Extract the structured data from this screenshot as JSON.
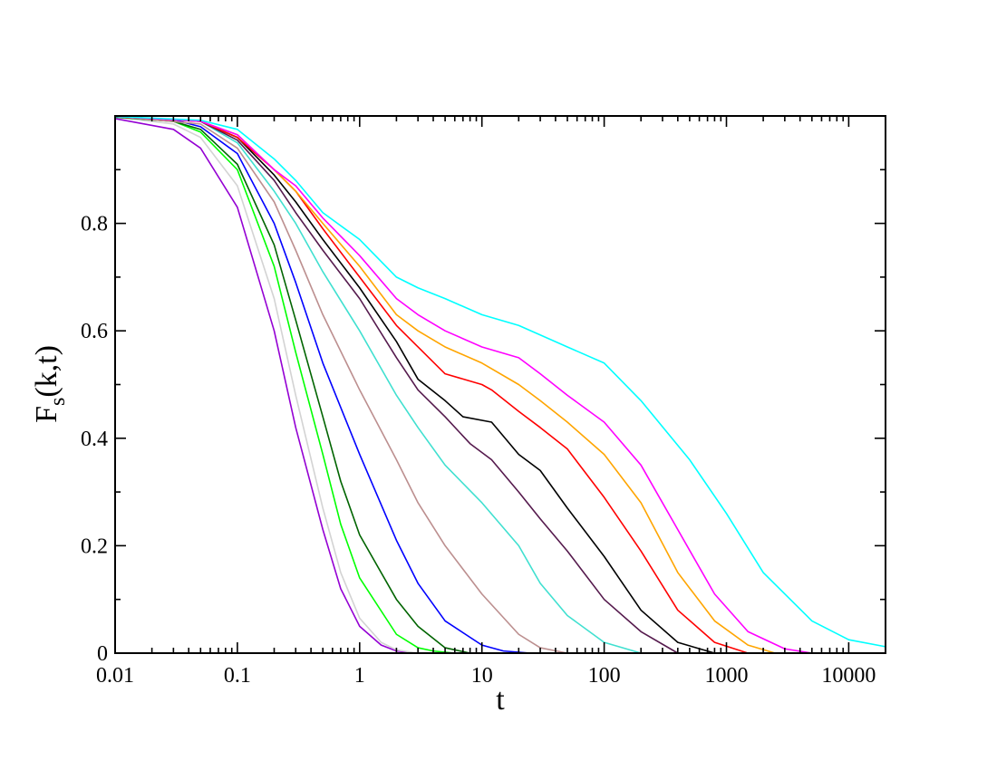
{
  "chart_data": {
    "type": "line",
    "xlabel": "t",
    "ylabel": "F",
    "ylabel_sub": "s",
    "ylabel_args": "(k,t)",
    "x_scale": "log",
    "xlim": [
      0.01,
      20000
    ],
    "ylim": [
      0,
      1
    ],
    "grid": false,
    "x_ticks": [
      {
        "value": 0.01,
        "label": "0.01"
      },
      {
        "value": 0.1,
        "label": "0.1"
      },
      {
        "value": 1,
        "label": "1"
      },
      {
        "value": 10,
        "label": "10"
      },
      {
        "value": 100,
        "label": "100"
      },
      {
        "value": 1000,
        "label": "1000"
      },
      {
        "value": 10000,
        "label": "10000"
      }
    ],
    "y_ticks": [
      {
        "value": 0,
        "label": "0"
      },
      {
        "value": 0.2,
        "label": "0.2"
      },
      {
        "value": 0.4,
        "label": "0.4"
      },
      {
        "value": 0.6,
        "label": "0.6"
      },
      {
        "value": 0.8,
        "label": "0.8"
      }
    ],
    "y_minor_ticks": [
      0.1,
      0.3,
      0.5,
      0.7,
      0.9
    ],
    "series": [
      {
        "color": "#9400d3",
        "x": [
          0.01,
          0.03,
          0.05,
          0.1,
          0.2,
          0.3,
          0.5,
          0.7,
          1.0,
          1.5,
          2.0,
          3.0
        ],
        "y": [
          0.995,
          0.975,
          0.94,
          0.83,
          0.6,
          0.42,
          0.23,
          0.12,
          0.05,
          0.015,
          0.004,
          0.0
        ]
      },
      {
        "color": "#d3d3d3",
        "x": [
          0.01,
          0.03,
          0.05,
          0.1,
          0.2,
          0.3,
          0.5,
          0.7,
          1.0,
          1.5,
          2.0,
          3.0
        ],
        "y": [
          0.998,
          0.985,
          0.96,
          0.87,
          0.66,
          0.48,
          0.27,
          0.15,
          0.065,
          0.02,
          0.006,
          0.0
        ]
      },
      {
        "color": "#00ff00",
        "x": [
          0.01,
          0.03,
          0.05,
          0.1,
          0.2,
          0.3,
          0.5,
          0.7,
          1.0,
          2.0,
          3.0,
          4.0,
          6.0
        ],
        "y": [
          0.998,
          0.99,
          0.97,
          0.9,
          0.72,
          0.56,
          0.37,
          0.24,
          0.14,
          0.035,
          0.01,
          0.004,
          0.0
        ]
      },
      {
        "color": "#006400",
        "x": [
          0.01,
          0.03,
          0.05,
          0.1,
          0.2,
          0.3,
          0.5,
          0.7,
          1.0,
          2.0,
          3.0,
          5.0,
          8.0
        ],
        "y": [
          0.998,
          0.99,
          0.975,
          0.91,
          0.76,
          0.62,
          0.44,
          0.32,
          0.22,
          0.1,
          0.05,
          0.01,
          0.0
        ]
      },
      {
        "color": "#0000ff",
        "x": [
          0.01,
          0.03,
          0.05,
          0.1,
          0.2,
          0.3,
          0.5,
          1.0,
          2.0,
          3.0,
          5.0,
          10.0,
          15.0,
          25.0
        ],
        "y": [
          0.999,
          0.993,
          0.98,
          0.93,
          0.8,
          0.69,
          0.54,
          0.37,
          0.21,
          0.13,
          0.06,
          0.015,
          0.004,
          0.0
        ]
      },
      {
        "color": "#bc8f8f",
        "x": [
          0.01,
          0.05,
          0.1,
          0.2,
          0.3,
          0.5,
          1.0,
          2.0,
          3.0,
          5.0,
          10.0,
          20.0,
          30.0,
          50.0
        ],
        "y": [
          0.999,
          0.985,
          0.94,
          0.84,
          0.75,
          0.63,
          0.49,
          0.36,
          0.28,
          0.2,
          0.11,
          0.035,
          0.01,
          0.0
        ]
      },
      {
        "color": "#40e0d0",
        "x": [
          0.01,
          0.05,
          0.1,
          0.2,
          0.3,
          0.5,
          1.0,
          2.0,
          3.0,
          5.0,
          10.0,
          20.0,
          30.0,
          50.0,
          100.0,
          200.0
        ],
        "y": [
          0.999,
          0.99,
          0.95,
          0.86,
          0.8,
          0.71,
          0.6,
          0.48,
          0.42,
          0.35,
          0.28,
          0.2,
          0.13,
          0.07,
          0.02,
          0.0
        ]
      },
      {
        "color": "#551a4d",
        "x": [
          0.01,
          0.05,
          0.1,
          0.2,
          0.3,
          0.5,
          1.0,
          2.0,
          3.0,
          5.0,
          8.0,
          12.0,
          20.0,
          30.0,
          50.0,
          100.0,
          200.0,
          400.0
        ],
        "y": [
          0.999,
          0.99,
          0.955,
          0.88,
          0.82,
          0.75,
          0.66,
          0.55,
          0.49,
          0.44,
          0.39,
          0.36,
          0.3,
          0.25,
          0.19,
          0.1,
          0.04,
          0.0
        ]
      },
      {
        "color": "#000000",
        "x": [
          0.01,
          0.05,
          0.1,
          0.2,
          0.3,
          0.5,
          1.0,
          2.0,
          3.0,
          5.0,
          7.0,
          12.0,
          20.0,
          30.0,
          50.0,
          100.0,
          200.0,
          400.0,
          800.0
        ],
        "y": [
          0.999,
          0.99,
          0.96,
          0.89,
          0.84,
          0.77,
          0.68,
          0.58,
          0.51,
          0.47,
          0.44,
          0.43,
          0.37,
          0.34,
          0.27,
          0.18,
          0.08,
          0.02,
          0.0
        ]
      },
      {
        "color": "#ff0000",
        "x": [
          0.01,
          0.05,
          0.1,
          0.2,
          0.3,
          0.5,
          1.0,
          2.0,
          3.0,
          5.0,
          10.0,
          12.0,
          20.0,
          30.0,
          50.0,
          100.0,
          200.0,
          400.0,
          800.0,
          1500.0
        ],
        "y": [
          0.999,
          0.99,
          0.96,
          0.9,
          0.86,
          0.79,
          0.7,
          0.61,
          0.57,
          0.52,
          0.5,
          0.49,
          0.45,
          0.42,
          0.38,
          0.29,
          0.19,
          0.08,
          0.02,
          0.0
        ]
      },
      {
        "color": "#ffa500",
        "x": [
          0.01,
          0.05,
          0.1,
          0.2,
          0.3,
          0.5,
          1.0,
          2.0,
          3.0,
          5.0,
          10.0,
          20.0,
          30.0,
          50.0,
          100.0,
          200.0,
          400.0,
          800.0,
          1500.0,
          2500.0
        ],
        "y": [
          0.999,
          0.99,
          0.965,
          0.9,
          0.86,
          0.8,
          0.72,
          0.63,
          0.6,
          0.57,
          0.54,
          0.5,
          0.47,
          0.43,
          0.37,
          0.28,
          0.15,
          0.06,
          0.015,
          0.0
        ]
      },
      {
        "color": "#ff00ff",
        "x": [
          0.01,
          0.05,
          0.1,
          0.2,
          0.3,
          0.5,
          1.0,
          2.0,
          3.0,
          5.0,
          10.0,
          20.0,
          30.0,
          50.0,
          100.0,
          200.0,
          400.0,
          800.0,
          1500.0,
          3000.0,
          5000.0
        ],
        "y": [
          0.999,
          0.99,
          0.965,
          0.9,
          0.87,
          0.81,
          0.74,
          0.66,
          0.63,
          0.6,
          0.57,
          0.55,
          0.52,
          0.48,
          0.43,
          0.35,
          0.23,
          0.11,
          0.04,
          0.008,
          0.0
        ]
      },
      {
        "color": "#00ffff",
        "x": [
          0.01,
          0.05,
          0.1,
          0.2,
          0.3,
          0.5,
          1.0,
          2.0,
          3.0,
          5.0,
          10.0,
          20.0,
          50.0,
          100.0,
          200.0,
          500.0,
          1000.0,
          2000.0,
          5000.0,
          10000.0,
          20000.0
        ],
        "y": [
          0.999,
          0.992,
          0.975,
          0.92,
          0.88,
          0.82,
          0.77,
          0.7,
          0.68,
          0.66,
          0.63,
          0.61,
          0.57,
          0.54,
          0.47,
          0.36,
          0.26,
          0.15,
          0.06,
          0.025,
          0.012
        ]
      }
    ]
  }
}
